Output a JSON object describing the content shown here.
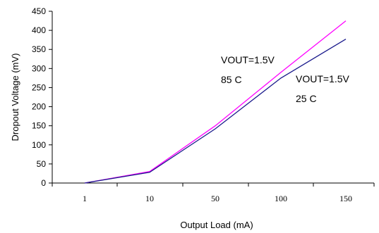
{
  "chart_data": {
    "type": "line",
    "xlabel": "Output Load (mA)",
    "ylabel": "Dropout Voltage (mV)",
    "ylim": [
      0,
      450
    ],
    "yticks": [
      0,
      50,
      100,
      150,
      200,
      250,
      300,
      350,
      400,
      450
    ],
    "categories": [
      "1",
      "10",
      "50",
      "100",
      "150"
    ],
    "grid": false,
    "series": [
      {
        "color": "#ff00ff",
        "values": [
          0,
          30,
          150,
          290,
          425
        ]
      },
      {
        "color": "#1a1a8c",
        "values": [
          0,
          28,
          142,
          275,
          377
        ]
      }
    ],
    "annotations": [
      {
        "lines": [
          "VOUT=1.5V",
          "85 C"
        ]
      },
      {
        "lines": [
          "VOUT=1.5V",
          "25 C"
        ]
      }
    ]
  }
}
